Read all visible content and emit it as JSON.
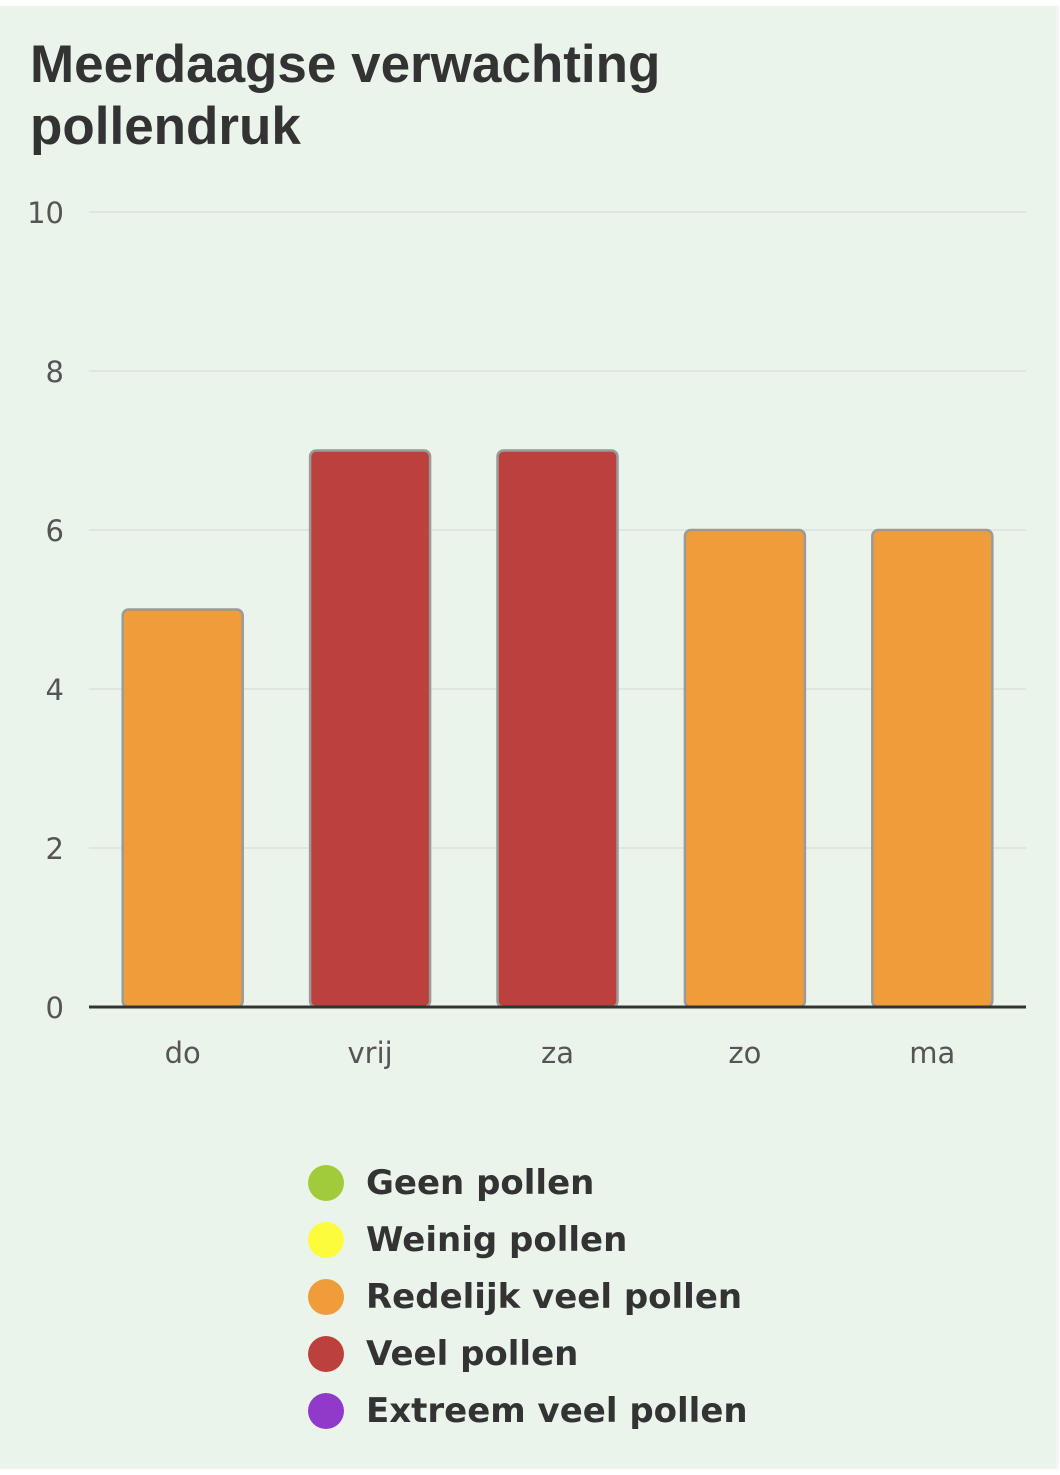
{
  "chart_data": {
    "type": "bar",
    "title": "Meerdaagse verwachting pollendruk",
    "xlabel": "",
    "ylabel": "",
    "categories": [
      "do",
      "vrij",
      "za",
      "zo",
      "ma"
    ],
    "values": [
      5,
      7,
      7,
      6,
      6
    ],
    "bar_levels": [
      "Redelijk veel pollen",
      "Veel pollen",
      "Veel pollen",
      "Redelijk veel pollen",
      "Redelijk veel pollen"
    ],
    "ylim": [
      0,
      10
    ],
    "yticks": [
      0,
      2,
      4,
      6,
      8,
      10
    ],
    "grid": true,
    "legend_position": "bottom",
    "legend": [
      {
        "label": "Geen pollen",
        "color": "#a2cb3c"
      },
      {
        "label": "Weinig pollen",
        "color": "#fcfc3c"
      },
      {
        "label": "Redelijk veel pollen",
        "color": "#ef9c3a"
      },
      {
        "label": "Veel pollen",
        "color": "#bc403b"
      },
      {
        "label": "Extreem veel pollen",
        "color": "#8f3ac9"
      }
    ]
  }
}
